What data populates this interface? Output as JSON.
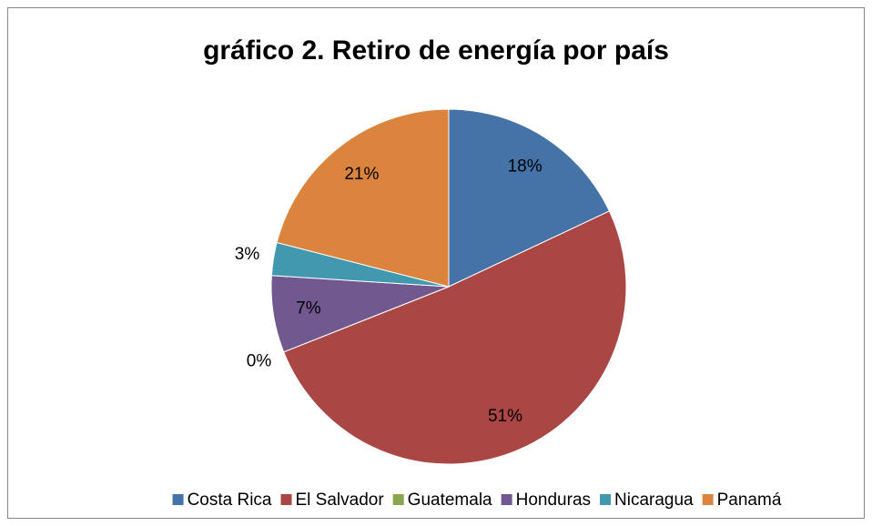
{
  "chart_data": {
    "type": "pie",
    "title": "gráfico 2. Retiro de energía por país",
    "categories": [
      "Costa Rica",
      "El Salvador",
      "Guatemala",
      "Honduras",
      "Nicaragua",
      "Panamá"
    ],
    "values": [
      18,
      51,
      0,
      7,
      3,
      21
    ],
    "value_labels": [
      "18%",
      "51%",
      "0%",
      "7%",
      "3%",
      "21%"
    ],
    "colors": [
      "#4572a7",
      "#aa4643",
      "#89a54e",
      "#71588f",
      "#4198af",
      "#db843d"
    ],
    "legend": "bottom"
  }
}
